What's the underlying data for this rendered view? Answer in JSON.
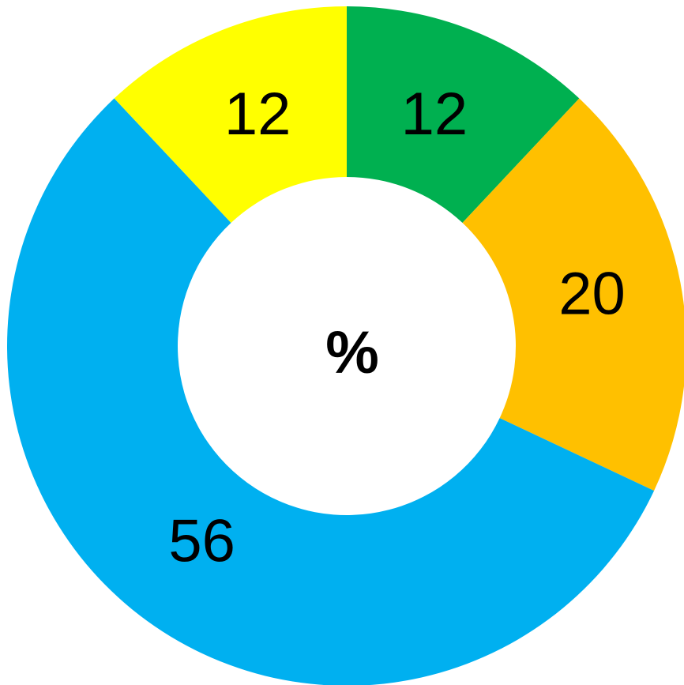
{
  "chart_data": {
    "type": "pie",
    "variant": "donut",
    "center_label": "%",
    "start": "top",
    "direction": "clockwise",
    "slices": [
      {
        "value": 12,
        "label": "12",
        "color": "#00B050"
      },
      {
        "value": 20,
        "label": "20",
        "color": "#FFC000"
      },
      {
        "value": 56,
        "label": "56",
        "color": "#00B0F0"
      },
      {
        "value": 12,
        "label": "12",
        "color": "#FFFF00"
      }
    ],
    "legend": "none"
  }
}
